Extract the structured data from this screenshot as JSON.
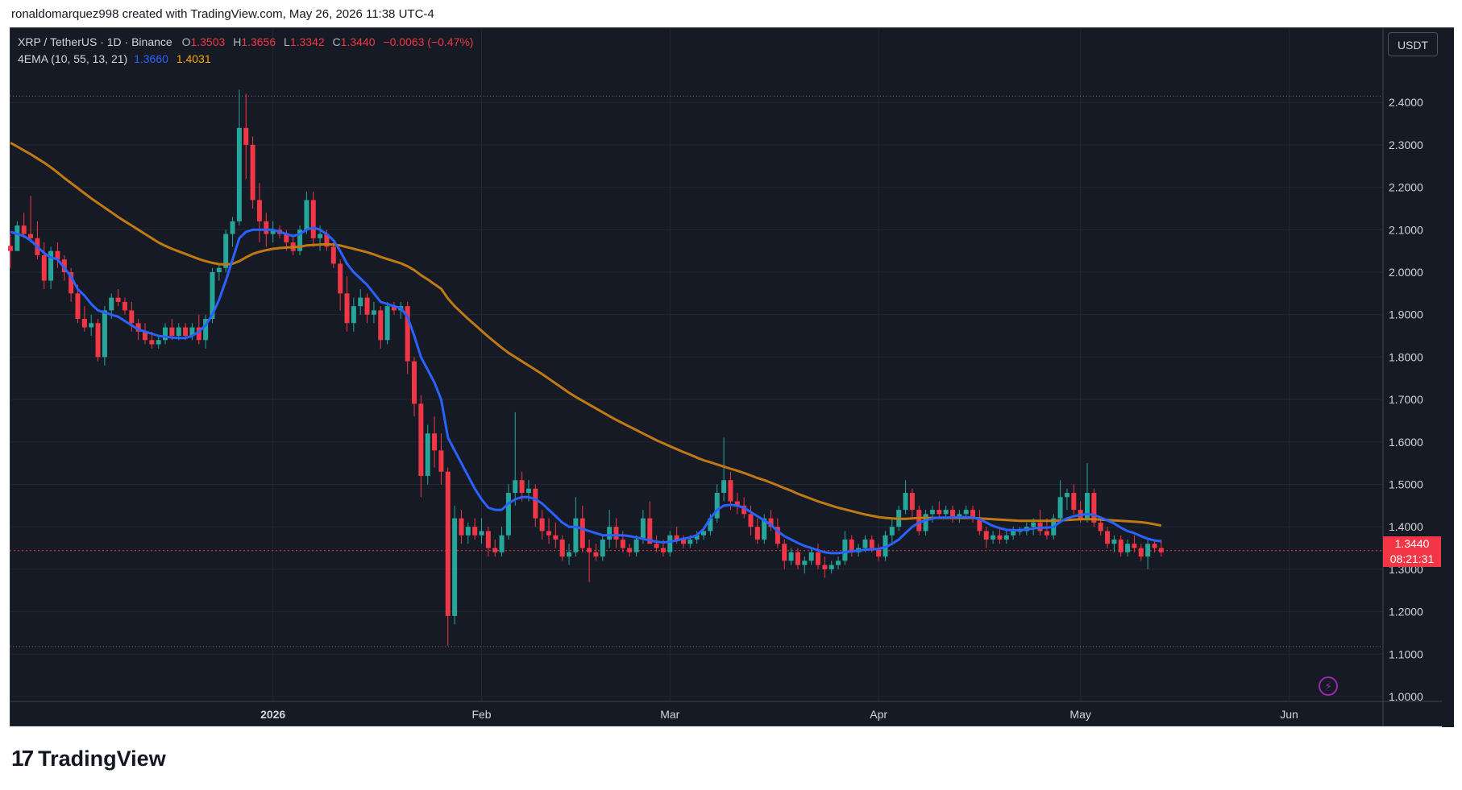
{
  "attribution": "ronaldomarquez998 created with TradingView.com, May 26, 2026 11:38 UTC-4",
  "legend": {
    "symbol": "XRP / TetherUS · 1D · Binance",
    "o_label": "O",
    "o_value": "1.3503",
    "h_label": "H",
    "h_value": "1.3656",
    "l_label": "L",
    "l_value": "1.3342",
    "c_label": "C",
    "c_value": "1.3440",
    "change": "−0.0063 (−0.47%)",
    "indicator": "4EMA (10, 55, 13, 21)",
    "ema_fast_value": "1.3660",
    "ema_slow_value": "1.4031"
  },
  "currency_button": "USDT",
  "last_price_tag": "1.3440",
  "countdown_tag": "08:21:31",
  "logo_text": "TradingView",
  "colors": {
    "background": "#161a25",
    "grid": "#232733",
    "up": "#26a69a",
    "down": "#f23645",
    "ema_fast": "#2962ff",
    "ema_slow": "#c07a14",
    "axis_text": "#d1d4dc"
  },
  "chart_data": {
    "type": "candlestick",
    "instrument": "XRP / TetherUS",
    "interval": "1D",
    "exchange": "Binance",
    "y_axis_ticks": [
      "2.4000",
      "2.3000",
      "2.2000",
      "2.1000",
      "2.0000",
      "1.9000",
      "1.8000",
      "1.7000",
      "1.6000",
      "1.5000",
      "1.4000",
      "1.3000",
      "1.2000",
      "1.1000",
      "1.0000"
    ],
    "y_range": [
      0.96,
      2.55
    ],
    "x_axis_labels": [
      "2026",
      "Feb",
      "Mar",
      "Apr",
      "May",
      "Jun"
    ],
    "x_axis_label_days": [
      39,
      70,
      98,
      129,
      159,
      190
    ],
    "start_date": "2025-11-23",
    "visible_high_line": 2.415,
    "visible_low_line": 1.118,
    "last_close": 1.344,
    "candles_ohlc": [
      [
        2.062,
        2.09,
        2.01,
        2.05
      ],
      [
        2.05,
        2.12,
        2.05,
        2.11
      ],
      [
        2.11,
        2.14,
        2.08,
        2.09
      ],
      [
        2.09,
        2.18,
        2.07,
        2.08
      ],
      [
        2.08,
        2.12,
        2.03,
        2.04
      ],
      [
        2.04,
        2.07,
        1.96,
        1.98
      ],
      [
        1.98,
        2.06,
        1.96,
        2.05
      ],
      [
        2.05,
        2.07,
        2.01,
        2.03
      ],
      [
        2.03,
        2.04,
        1.98,
        2.0
      ],
      [
        2.0,
        2.01,
        1.93,
        1.95
      ],
      [
        1.95,
        1.97,
        1.88,
        1.89
      ],
      [
        1.89,
        1.92,
        1.86,
        1.87
      ],
      [
        1.87,
        1.9,
        1.85,
        1.88
      ],
      [
        1.88,
        1.89,
        1.79,
        1.8
      ],
      [
        1.8,
        1.92,
        1.78,
        1.91
      ],
      [
        1.91,
        1.95,
        1.89,
        1.94
      ],
      [
        1.94,
        1.96,
        1.92,
        1.93
      ],
      [
        1.93,
        1.94,
        1.9,
        1.91
      ],
      [
        1.91,
        1.93,
        1.86,
        1.88
      ],
      [
        1.88,
        1.89,
        1.84,
        1.86
      ],
      [
        1.86,
        1.88,
        1.83,
        1.84
      ],
      [
        1.84,
        1.86,
        1.82,
        1.83
      ],
      [
        1.83,
        1.85,
        1.82,
        1.84
      ],
      [
        1.84,
        1.88,
        1.83,
        1.87
      ],
      [
        1.87,
        1.89,
        1.84,
        1.85
      ],
      [
        1.85,
        1.88,
        1.84,
        1.87
      ],
      [
        1.87,
        1.88,
        1.84,
        1.85
      ],
      [
        1.85,
        1.88,
        1.84,
        1.87
      ],
      [
        1.87,
        1.9,
        1.83,
        1.84
      ],
      [
        1.84,
        1.9,
        1.82,
        1.89
      ],
      [
        1.89,
        2.01,
        1.88,
        2.0
      ],
      [
        2.0,
        2.02,
        1.98,
        2.01
      ],
      [
        2.01,
        2.1,
        2.0,
        2.09
      ],
      [
        2.09,
        2.13,
        2.06,
        2.12
      ],
      [
        2.12,
        2.43,
        2.11,
        2.34
      ],
      [
        2.34,
        2.42,
        2.22,
        2.3
      ],
      [
        2.3,
        2.32,
        2.15,
        2.17
      ],
      [
        2.17,
        2.21,
        2.07,
        2.12
      ],
      [
        2.12,
        2.14,
        2.06,
        2.09
      ],
      [
        2.09,
        2.12,
        2.07,
        2.1
      ],
      [
        2.1,
        2.11,
        2.08,
        2.09
      ],
      [
        2.09,
        2.1,
        2.05,
        2.07
      ],
      [
        2.07,
        2.09,
        2.04,
        2.05
      ],
      [
        2.05,
        2.11,
        2.04,
        2.1
      ],
      [
        2.1,
        2.19,
        2.09,
        2.17
      ],
      [
        2.17,
        2.19,
        2.06,
        2.08
      ],
      [
        2.08,
        2.11,
        2.05,
        2.09
      ],
      [
        2.09,
        2.1,
        2.05,
        2.06
      ],
      [
        2.06,
        2.07,
        2.01,
        2.02
      ],
      [
        2.02,
        2.03,
        1.91,
        1.95
      ],
      [
        1.95,
        1.99,
        1.86,
        1.88
      ],
      [
        1.88,
        1.94,
        1.86,
        1.92
      ],
      [
        1.92,
        1.96,
        1.9,
        1.94
      ],
      [
        1.94,
        1.95,
        1.88,
        1.9
      ],
      [
        1.9,
        1.93,
        1.88,
        1.91
      ],
      [
        1.91,
        1.92,
        1.82,
        1.84
      ],
      [
        1.84,
        1.93,
        1.83,
        1.92
      ],
      [
        1.92,
        1.93,
        1.9,
        1.91
      ],
      [
        1.91,
        1.93,
        1.89,
        1.92
      ],
      [
        1.92,
        1.93,
        1.76,
        1.79
      ],
      [
        1.79,
        1.8,
        1.66,
        1.69
      ],
      [
        1.69,
        1.71,
        1.47,
        1.52
      ],
      [
        1.52,
        1.64,
        1.5,
        1.62
      ],
      [
        1.62,
        1.66,
        1.54,
        1.58
      ],
      [
        1.58,
        1.62,
        1.5,
        1.53
      ],
      [
        1.53,
        1.54,
        1.12,
        1.19
      ],
      [
        1.19,
        1.45,
        1.17,
        1.42
      ],
      [
        1.42,
        1.44,
        1.36,
        1.38
      ],
      [
        1.38,
        1.41,
        1.36,
        1.4
      ],
      [
        1.4,
        1.42,
        1.37,
        1.38
      ],
      [
        1.38,
        1.42,
        1.36,
        1.39
      ],
      [
        1.39,
        1.4,
        1.33,
        1.35
      ],
      [
        1.35,
        1.37,
        1.33,
        1.34
      ],
      [
        1.34,
        1.4,
        1.33,
        1.38
      ],
      [
        1.38,
        1.5,
        1.37,
        1.48
      ],
      [
        1.48,
        1.67,
        1.45,
        1.51
      ],
      [
        1.51,
        1.53,
        1.46,
        1.48
      ],
      [
        1.48,
        1.51,
        1.46,
        1.49
      ],
      [
        1.49,
        1.5,
        1.4,
        1.42
      ],
      [
        1.42,
        1.44,
        1.37,
        1.39
      ],
      [
        1.39,
        1.42,
        1.36,
        1.38
      ],
      [
        1.38,
        1.41,
        1.35,
        1.37
      ],
      [
        1.37,
        1.38,
        1.32,
        1.33
      ],
      [
        1.33,
        1.36,
        1.31,
        1.34
      ],
      [
        1.34,
        1.47,
        1.33,
        1.42
      ],
      [
        1.42,
        1.45,
        1.34,
        1.35
      ],
      [
        1.35,
        1.37,
        1.27,
        1.34
      ],
      [
        1.34,
        1.36,
        1.32,
        1.33
      ],
      [
        1.33,
        1.38,
        1.32,
        1.37
      ],
      [
        1.37,
        1.44,
        1.35,
        1.4
      ],
      [
        1.4,
        1.42,
        1.35,
        1.37
      ],
      [
        1.37,
        1.39,
        1.34,
        1.35
      ],
      [
        1.35,
        1.36,
        1.33,
        1.34
      ],
      [
        1.34,
        1.38,
        1.33,
        1.37
      ],
      [
        1.37,
        1.44,
        1.36,
        1.42
      ],
      [
        1.42,
        1.46,
        1.38,
        1.36
      ],
      [
        1.36,
        1.38,
        1.34,
        1.35
      ],
      [
        1.35,
        1.37,
        1.33,
        1.34
      ],
      [
        1.34,
        1.39,
        1.33,
        1.38
      ],
      [
        1.38,
        1.4,
        1.36,
        1.37
      ],
      [
        1.37,
        1.38,
        1.35,
        1.36
      ],
      [
        1.36,
        1.38,
        1.35,
        1.37
      ],
      [
        1.37,
        1.39,
        1.36,
        1.38
      ],
      [
        1.38,
        1.4,
        1.37,
        1.39
      ],
      [
        1.39,
        1.43,
        1.38,
        1.42
      ],
      [
        1.42,
        1.5,
        1.41,
        1.48
      ],
      [
        1.48,
        1.61,
        1.46,
        1.51
      ],
      [
        1.51,
        1.53,
        1.44,
        1.46
      ],
      [
        1.46,
        1.48,
        1.43,
        1.45
      ],
      [
        1.45,
        1.47,
        1.42,
        1.43
      ],
      [
        1.43,
        1.45,
        1.38,
        1.4
      ],
      [
        1.4,
        1.42,
        1.36,
        1.37
      ],
      [
        1.37,
        1.43,
        1.36,
        1.42
      ],
      [
        1.42,
        1.44,
        1.39,
        1.4
      ],
      [
        1.4,
        1.42,
        1.35,
        1.36
      ],
      [
        1.36,
        1.37,
        1.3,
        1.32
      ],
      [
        1.32,
        1.35,
        1.31,
        1.34
      ],
      [
        1.34,
        1.35,
        1.3,
        1.31
      ],
      [
        1.31,
        1.33,
        1.29,
        1.32
      ],
      [
        1.32,
        1.35,
        1.31,
        1.34
      ],
      [
        1.34,
        1.36,
        1.3,
        1.31
      ],
      [
        1.31,
        1.33,
        1.28,
        1.3
      ],
      [
        1.3,
        1.32,
        1.29,
        1.31
      ],
      [
        1.31,
        1.33,
        1.3,
        1.32
      ],
      [
        1.32,
        1.39,
        1.31,
        1.37
      ],
      [
        1.37,
        1.38,
        1.33,
        1.34
      ],
      [
        1.34,
        1.36,
        1.33,
        1.35
      ],
      [
        1.35,
        1.38,
        1.34,
        1.37
      ],
      [
        1.37,
        1.38,
        1.34,
        1.35
      ],
      [
        1.35,
        1.36,
        1.32,
        1.33
      ],
      [
        1.33,
        1.39,
        1.32,
        1.38
      ],
      [
        1.38,
        1.42,
        1.36,
        1.4
      ],
      [
        1.4,
        1.45,
        1.39,
        1.44
      ],
      [
        1.44,
        1.51,
        1.43,
        1.48
      ],
      [
        1.48,
        1.49,
        1.42,
        1.44
      ],
      [
        1.44,
        1.45,
        1.38,
        1.39
      ],
      [
        1.39,
        1.44,
        1.38,
        1.43
      ],
      [
        1.43,
        1.45,
        1.41,
        1.44
      ],
      [
        1.44,
        1.46,
        1.42,
        1.43
      ],
      [
        1.43,
        1.45,
        1.42,
        1.44
      ],
      [
        1.44,
        1.45,
        1.41,
        1.42
      ],
      [
        1.42,
        1.44,
        1.41,
        1.43
      ],
      [
        1.43,
        1.45,
        1.42,
        1.44
      ],
      [
        1.44,
        1.45,
        1.41,
        1.42
      ],
      [
        1.42,
        1.44,
        1.38,
        1.39
      ],
      [
        1.39,
        1.4,
        1.35,
        1.37
      ],
      [
        1.37,
        1.39,
        1.36,
        1.38
      ],
      [
        1.38,
        1.4,
        1.36,
        1.37
      ],
      [
        1.37,
        1.39,
        1.36,
        1.38
      ],
      [
        1.38,
        1.4,
        1.37,
        1.39
      ],
      [
        1.39,
        1.4,
        1.38,
        1.39
      ],
      [
        1.39,
        1.41,
        1.38,
        1.4
      ],
      [
        1.4,
        1.42,
        1.38,
        1.41
      ],
      [
        1.41,
        1.44,
        1.38,
        1.39
      ],
      [
        1.39,
        1.42,
        1.37,
        1.38
      ],
      [
        1.38,
        1.43,
        1.37,
        1.42
      ],
      [
        1.42,
        1.51,
        1.41,
        1.47
      ],
      [
        1.47,
        1.49,
        1.44,
        1.48
      ],
      [
        1.48,
        1.5,
        1.43,
        1.44
      ],
      [
        1.44,
        1.46,
        1.41,
        1.42
      ],
      [
        1.42,
        1.55,
        1.41,
        1.48
      ],
      [
        1.48,
        1.49,
        1.4,
        1.41
      ],
      [
        1.41,
        1.42,
        1.38,
        1.39
      ],
      [
        1.39,
        1.4,
        1.35,
        1.36
      ],
      [
        1.36,
        1.38,
        1.34,
        1.37
      ],
      [
        1.37,
        1.38,
        1.33,
        1.34
      ],
      [
        1.34,
        1.37,
        1.33,
        1.36
      ],
      [
        1.36,
        1.38,
        1.34,
        1.35
      ],
      [
        1.35,
        1.36,
        1.32,
        1.33
      ],
      [
        1.33,
        1.37,
        1.3,
        1.36
      ],
      [
        1.36,
        1.37,
        1.34,
        1.35
      ],
      [
        1.35,
        1.37,
        1.33,
        1.34
      ]
    ],
    "ema_fast": [
      2.095,
      2.09,
      2.085,
      2.075,
      2.06,
      2.045,
      2.035,
      2.03,
      2.01,
      1.99,
      1.96,
      1.945,
      1.925,
      1.91,
      1.905,
      1.9,
      1.895,
      1.885,
      1.875,
      1.865,
      1.86,
      1.855,
      1.85,
      1.848,
      1.846,
      1.845,
      1.845,
      1.85,
      1.86,
      1.875,
      1.9,
      1.935,
      1.98,
      2.03,
      2.08,
      2.095,
      2.1,
      2.1,
      2.1,
      2.1,
      2.095,
      2.09,
      2.085,
      2.09,
      2.1,
      2.105,
      2.1,
      2.09,
      2.075,
      2.05,
      2.02,
      2.0,
      1.985,
      1.97,
      1.95,
      1.93,
      1.925,
      1.92,
      1.915,
      1.895,
      1.85,
      1.8,
      1.77,
      1.74,
      1.7,
      1.61,
      1.58,
      1.55,
      1.52,
      1.49,
      1.465,
      1.445,
      1.44,
      1.44,
      1.455,
      1.465,
      1.47,
      1.47,
      1.465,
      1.455,
      1.44,
      1.425,
      1.41,
      1.4,
      1.4,
      1.395,
      1.39,
      1.385,
      1.38,
      1.38,
      1.38,
      1.38,
      1.378,
      1.375,
      1.372,
      1.368,
      1.365,
      1.363,
      1.365,
      1.368,
      1.372,
      1.375,
      1.38,
      1.395,
      1.42,
      1.44,
      1.45,
      1.452,
      1.45,
      1.445,
      1.435,
      1.425,
      1.415,
      1.405,
      1.39,
      1.378,
      1.37,
      1.362,
      1.355,
      1.35,
      1.345,
      1.34,
      1.338,
      1.338,
      1.34,
      1.342,
      1.344,
      1.346,
      1.347,
      1.348,
      1.352,
      1.36,
      1.37,
      1.385,
      1.4,
      1.41,
      1.415,
      1.42,
      1.422,
      1.422,
      1.422,
      1.423,
      1.423,
      1.422,
      1.418,
      1.41,
      1.402,
      1.397,
      1.393,
      1.392,
      1.392,
      1.394,
      1.396,
      1.398,
      1.398,
      1.4,
      1.412,
      1.42,
      1.425,
      1.428,
      1.43,
      1.428,
      1.422,
      1.415,
      1.408,
      1.398,
      1.39,
      1.385,
      1.378,
      1.372,
      1.368,
      1.366
    ],
    "ema_slow": [
      2.305,
      2.296,
      2.287,
      2.278,
      2.268,
      2.258,
      2.247,
      2.235,
      2.222,
      2.21,
      2.198,
      2.186,
      2.174,
      2.163,
      2.152,
      2.141,
      2.13,
      2.12,
      2.11,
      2.1,
      2.09,
      2.08,
      2.07,
      2.062,
      2.055,
      2.049,
      2.043,
      2.037,
      2.031,
      2.026,
      2.022,
      2.019,
      2.018,
      2.02,
      2.026,
      2.035,
      2.043,
      2.048,
      2.052,
      2.055,
      2.057,
      2.058,
      2.059,
      2.06,
      2.063,
      2.064,
      2.065,
      2.066,
      2.065,
      2.063,
      2.059,
      2.055,
      2.051,
      2.047,
      2.042,
      2.036,
      2.031,
      2.026,
      2.021,
      2.014,
      2.005,
      1.993,
      1.983,
      1.972,
      1.961,
      1.938,
      1.92,
      1.905,
      1.89,
      1.876,
      1.862,
      1.848,
      1.835,
      1.822,
      1.81,
      1.8,
      1.79,
      1.78,
      1.77,
      1.76,
      1.749,
      1.738,
      1.727,
      1.716,
      1.706,
      1.697,
      1.688,
      1.679,
      1.67,
      1.661,
      1.652,
      1.644,
      1.636,
      1.628,
      1.62,
      1.612,
      1.604,
      1.597,
      1.59,
      1.583,
      1.576,
      1.57,
      1.563,
      1.557,
      1.552,
      1.547,
      1.542,
      1.537,
      1.532,
      1.527,
      1.521,
      1.515,
      1.51,
      1.504,
      1.498,
      1.491,
      1.485,
      1.478,
      1.472,
      1.466,
      1.46,
      1.455,
      1.45,
      1.445,
      1.441,
      1.437,
      1.433,
      1.429,
      1.426,
      1.423,
      1.421,
      1.42,
      1.419,
      1.419,
      1.42,
      1.421,
      1.421,
      1.421,
      1.421,
      1.421,
      1.421,
      1.421,
      1.421,
      1.421,
      1.42,
      1.419,
      1.418,
      1.417,
      1.416,
      1.415,
      1.414,
      1.414,
      1.414,
      1.414,
      1.414,
      1.414,
      1.415,
      1.416,
      1.417,
      1.418,
      1.418,
      1.418,
      1.417,
      1.416,
      1.415,
      1.414,
      1.413,
      1.412,
      1.411,
      1.409,
      1.406,
      1.403
    ]
  }
}
